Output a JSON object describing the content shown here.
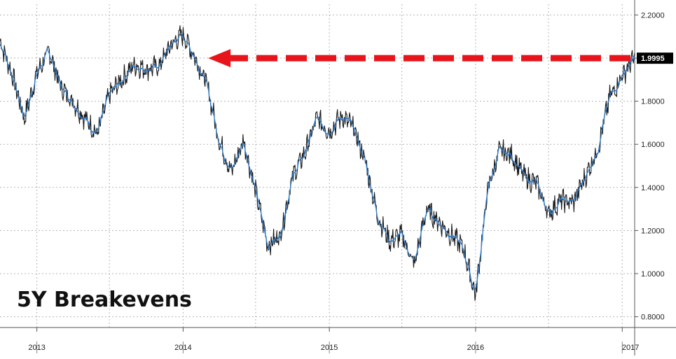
{
  "chart_data": {
    "type": "line",
    "title": "5Y Breakevens",
    "xlabel": "",
    "ylabel": "",
    "x_tick_labels": [
      "2013",
      "2014",
      "2015",
      "2016",
      "2017"
    ],
    "y_tick_labels": [
      "0.8000",
      "1.0000",
      "1.2000",
      "1.4000",
      "1.6000",
      "1.8000",
      "2.0000",
      "2.2000"
    ],
    "ylim": [
      0.75,
      2.25
    ],
    "xlim": [
      "2012-10",
      "2017-02"
    ],
    "grid": true,
    "last_value_label": "1.9995",
    "annotation": "Red dashed arrow pointing left from the latest value (1.9995) to the early-2014 peak at a similar level",
    "colors": {
      "price": "#1a1a1a",
      "smooth": "#2e7fd1",
      "arrow": "#e8141c",
      "grid": "#b5b5b5",
      "last_box": "#000000"
    },
    "series": [
      {
        "x": [
          "2012-10",
          "2012-11",
          "2012-12",
          "2013-01",
          "2013-02",
          "2013-03",
          "2013-04",
          "2013-05",
          "2013-06",
          "2013-07",
          "2013-08",
          "2013-09",
          "2013-10",
          "2013-11",
          "2013-12",
          "2014-01",
          "2014-02",
          "2014-03",
          "2014-04",
          "2014-05",
          "2014-06",
          "2014-07",
          "2014-08",
          "2014-09",
          "2014-10",
          "2014-11",
          "2014-12",
          "2015-01",
          "2015-02",
          "2015-03",
          "2015-04",
          "2015-05",
          "2015-06",
          "2015-07",
          "2015-08",
          "2015-09",
          "2015-10",
          "2015-11",
          "2015-12",
          "2016-01",
          "2016-02",
          "2016-03",
          "2016-04",
          "2016-05",
          "2016-06",
          "2016-07",
          "2016-08",
          "2016-09",
          "2016-10",
          "2016-11",
          "2016-12",
          "2017-01",
          "2017-02"
        ],
        "values": [
          2.08,
          1.92,
          1.72,
          1.93,
          2.03,
          1.87,
          1.8,
          1.72,
          1.65,
          1.83,
          1.9,
          1.97,
          1.95,
          1.96,
          2.06,
          2.11,
          2.0,
          1.88,
          1.62,
          1.47,
          1.62,
          1.38,
          1.13,
          1.18,
          1.45,
          1.56,
          1.72,
          1.66,
          1.73,
          1.68,
          1.52,
          1.27,
          1.15,
          1.18,
          1.04,
          1.3,
          1.24,
          1.18,
          1.12,
          0.9,
          1.4,
          1.57,
          1.55,
          1.45,
          1.42,
          1.28,
          1.34,
          1.33,
          1.45,
          1.58,
          1.82,
          1.92,
          2.0
        ]
      }
    ]
  }
}
